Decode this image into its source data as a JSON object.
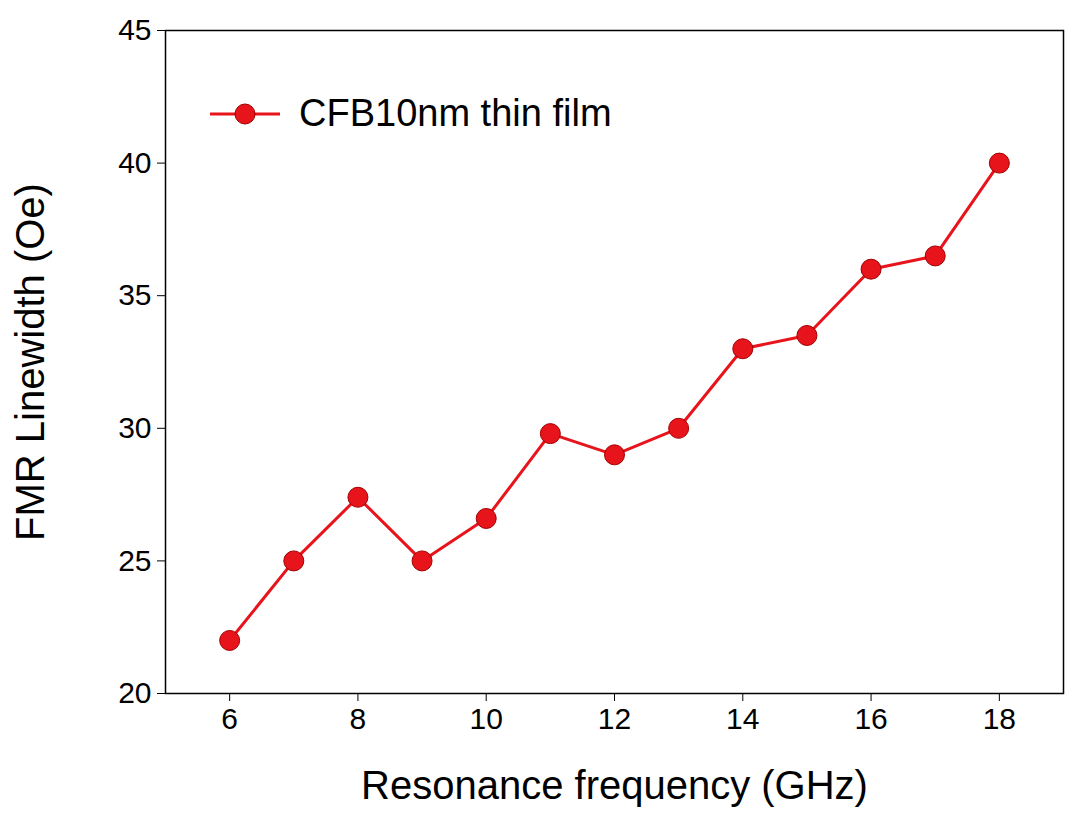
{
  "chart_data": {
    "type": "line",
    "x_label": "Resonance frequency (GHz)",
    "y_label": "FMR Linewidth (Oe)",
    "x": [
      6,
      7,
      8,
      9,
      10,
      11,
      12,
      13,
      14,
      15,
      16,
      17,
      18
    ],
    "series": [
      {
        "name": "CFB10nm thin film",
        "color": "#e8141c",
        "marker": "circle",
        "line_style": "solid",
        "values": [
          22,
          25,
          27.4,
          25,
          26.6,
          29.8,
          29,
          30,
          33,
          33.5,
          36,
          36.5,
          40
        ]
      }
    ],
    "xlim": [
      5,
      19
    ],
    "xticks": [
      6,
      8,
      10,
      12,
      14,
      16,
      18
    ],
    "ylim": [
      20,
      45
    ],
    "yticks": [
      20,
      25,
      30,
      35,
      40,
      45
    ],
    "legend": "upper left",
    "grid": false
  }
}
